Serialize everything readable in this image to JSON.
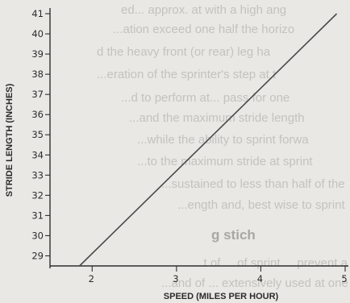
{
  "chart_data": {
    "type": "line",
    "title": "",
    "xlabel": "SPEED (MILES PER HOUR)",
    "ylabel": "STRIDE LENGTH (INCHES)",
    "xlim": [
      1.5,
      5
    ],
    "ylim": [
      28.5,
      41
    ],
    "x_ticks": [
      2,
      3,
      4,
      5
    ],
    "y_ticks": [
      29,
      30,
      31,
      32,
      33,
      34,
      35,
      36,
      37,
      38,
      39,
      40,
      41
    ],
    "grid": false,
    "series": [
      {
        "x": [
          1.85,
          4.9
        ],
        "y": [
          28.5,
          41.0
        ]
      }
    ],
    "line_color": "#4a4a4a"
  },
  "background_text": {
    "lines": [
      "ed... approx. at with a high ang",
      "...ation exceed one half the horizo",
      "d the heavy front (or rear) leg ha",
      "...eration of the sprinter's step at t",
      "...d to perform at... pass for one",
      "...and the maximum stride length",
      "...while the ability to sprint forwa",
      "...to the maximum stride at sprint",
      "...sustained to less than half of the",
      "...ength and, best wise to sprint",
      "...t of ... of sprint ... prevent a",
      "...and of ... extensively used at one time"
    ],
    "heading": "g stich"
  }
}
